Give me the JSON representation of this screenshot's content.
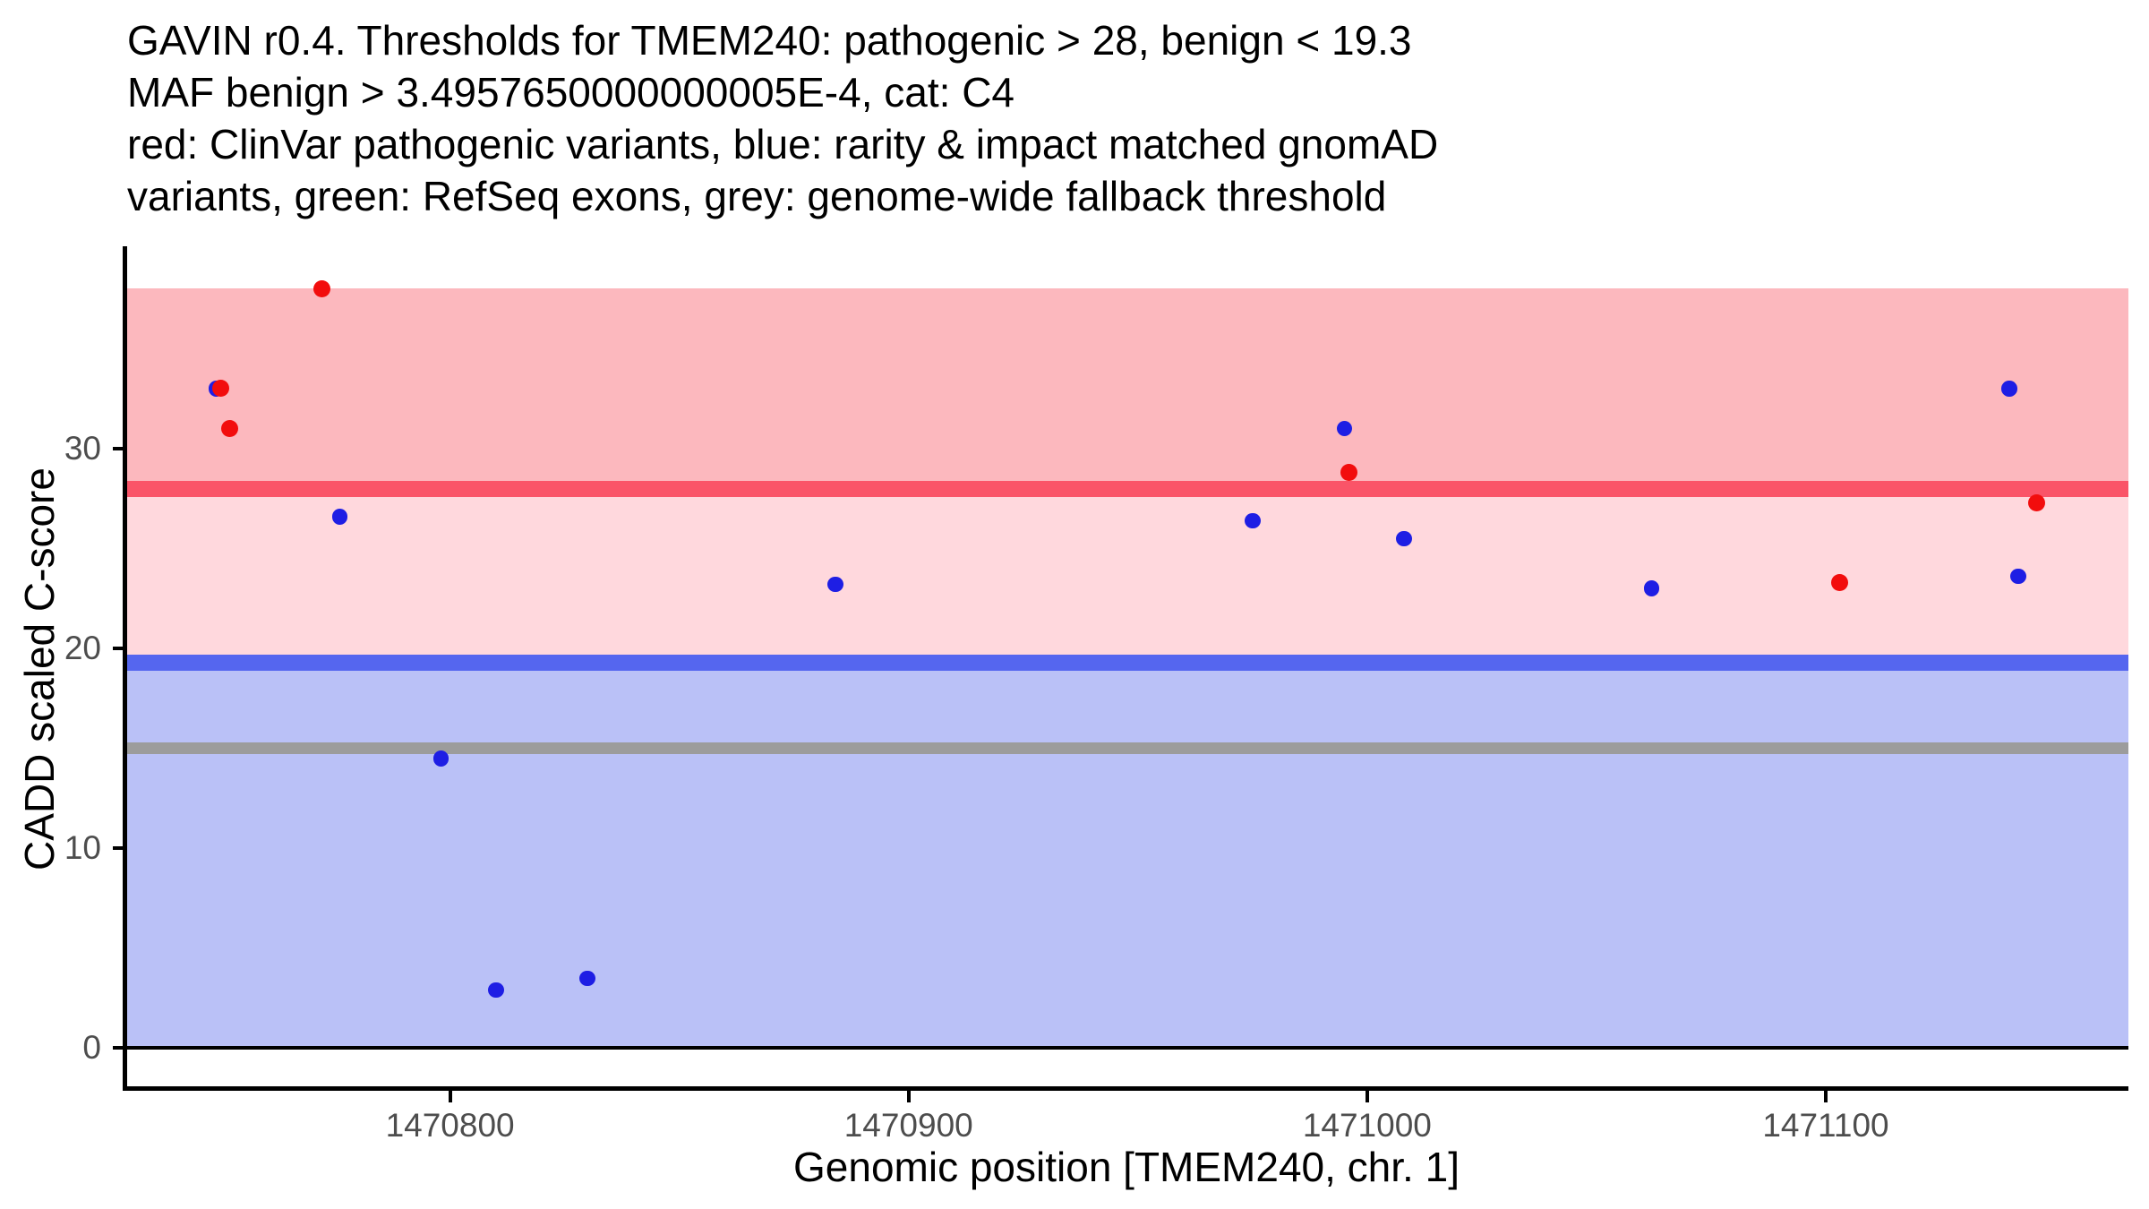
{
  "title": {
    "lines": [
      "GAVIN r0.4. Thresholds for TMEM240: pathogenic > 28, benign < 19.3",
      "MAF benign > 3.4957650000000005E-4, cat: C4",
      "red: ClinVar pathogenic variants, blue: rarity & impact matched gnomAD",
      "variants, green: RefSeq exons, grey: genome-wide fallback threshold"
    ]
  },
  "axes": {
    "y_label": "CADD scaled C-score",
    "x_label": "Genomic position [TMEM240, chr. 1]"
  },
  "colors": {
    "background": "#FFFFFF",
    "axis_line": "#000000",
    "tick_text": "#4D4D4D",
    "title_text": "#000000",
    "pathogenic_band": "#FCB8BE",
    "intermediate_band": "#FFD8DD",
    "benign_band": "#BAC1F7",
    "pathogenic_line": "#FA5468",
    "benign_line": "#5566EF",
    "fallback_line": "#9C9C9C",
    "zero_line": "#000000",
    "clinvar_point": "#F20D0D",
    "gnomad_point": "#1E1EE4"
  },
  "chart_data": {
    "type": "scatter",
    "title": "GAVIN r0.4. Thresholds for TMEM240: pathogenic > 28, benign < 19.3 MAF benign > 3.4957650000000005E-4, cat: C4",
    "xlabel": "Genomic position [TMEM240, chr. 1]",
    "ylabel": "CADD scaled C-score",
    "x_domain": [
      1470729,
      1471166
    ],
    "y_domain": [
      -2,
      39.9
    ],
    "x_ticks": [
      1470800,
      1470900,
      1471000,
      1471100
    ],
    "y_ticks": [
      0,
      10,
      20,
      30
    ],
    "grid": false,
    "legend": "none",
    "thresholds_info": {
      "pathogenic_gt": 28,
      "benign_lt": 19.3,
      "genome_wide_fallback": 15,
      "maf_benign_gt": "3.4957650000000005E-4",
      "category": "C4"
    },
    "bands": [
      {
        "name": "pathogenic-region",
        "from": 28,
        "to": 38,
        "color": "#FCB8BE"
      },
      {
        "name": "intermediate-region",
        "from": 19.3,
        "to": 28,
        "color": "#FFD8DD"
      },
      {
        "name": "benign-region",
        "from": 0,
        "to": 19.3,
        "color": "#BAC1F7"
      }
    ],
    "thresholds": [
      {
        "name": "pathogenic-threshold",
        "value": 28,
        "color": "#FA5468",
        "thickness_px": 18
      },
      {
        "name": "benign-threshold",
        "value": 19.3,
        "color": "#5566EF",
        "thickness_px": 18
      },
      {
        "name": "genome-wide-fallback-threshold",
        "value": 15,
        "color": "#9C9C9C",
        "thickness_px": 13
      },
      {
        "name": "zero-baseline",
        "value": 0,
        "color": "#000000",
        "thickness_px": 4
      }
    ],
    "series": [
      {
        "name": "rarity & impact matched gnomAD variants",
        "point_name": "gnomad-variant-point",
        "color": "#1E1EE4",
        "radius_px": 8.75,
        "z": 3,
        "points": [
          [
            1470749,
            33.0
          ],
          [
            1470776,
            26.6
          ],
          [
            1470798,
            14.5
          ],
          [
            1470810,
            2.9
          ],
          [
            1470830,
            3.5
          ],
          [
            1470884,
            23.2
          ],
          [
            1470975,
            26.4
          ],
          [
            1470995,
            31.0
          ],
          [
            1471008,
            25.5
          ],
          [
            1471062,
            23.0
          ],
          [
            1471140,
            33.0
          ],
          [
            1471142,
            23.6
          ]
        ]
      },
      {
        "name": "ClinVar pathogenic variants",
        "point_name": "clinvar-pathogenic-point",
        "color": "#F20D0D",
        "radius_px": 9.5,
        "z": 4,
        "points": [
          [
            1470772,
            38.0
          ],
          [
            1470750,
            33.0
          ],
          [
            1470752,
            31.0
          ],
          [
            1470996,
            28.8
          ],
          [
            1471103,
            23.3
          ],
          [
            1471146,
            27.3
          ]
        ]
      }
    ]
  }
}
